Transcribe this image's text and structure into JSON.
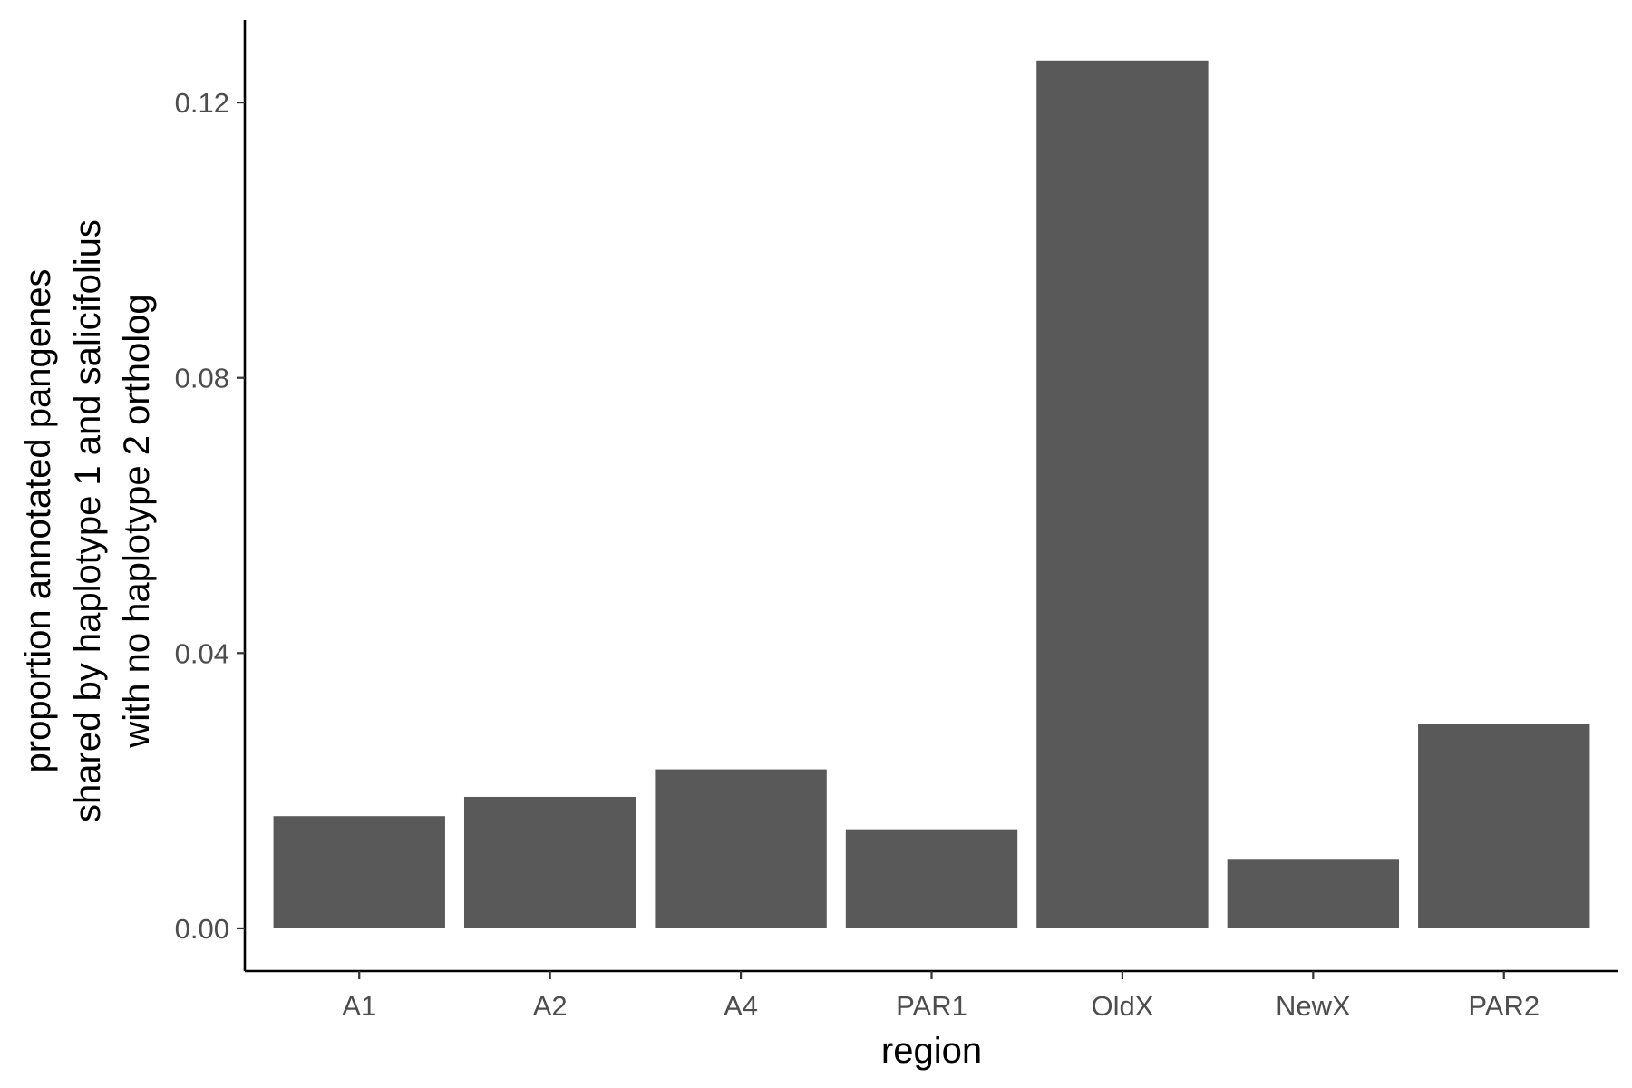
{
  "chart_data": {
    "type": "bar",
    "categories": [
      "A1",
      "A2",
      "A4",
      "PAR1",
      "OldX",
      "NewX",
      "PAR2"
    ],
    "values": [
      0.0163,
      0.0191,
      0.0231,
      0.0144,
      0.1261,
      0.0101,
      0.0297
    ],
    "xlabel": "region",
    "ylabel_lines": [
      "proportion annotated pangenes",
      "shared by haplotype 1 and salicifolius",
      "with no haplotype 2 ortholog"
    ],
    "ylim": [
      -0.0062,
      0.132
    ],
    "yticks": [
      0.0,
      0.04,
      0.08,
      0.12
    ],
    "ytick_labels": [
      "0.00",
      "0.04",
      "0.08",
      "0.12"
    ],
    "grid": false,
    "legend": "none",
    "colors": {
      "bar": "#595959",
      "axis": "#000000",
      "tick_text": "#4d4d4d"
    }
  }
}
